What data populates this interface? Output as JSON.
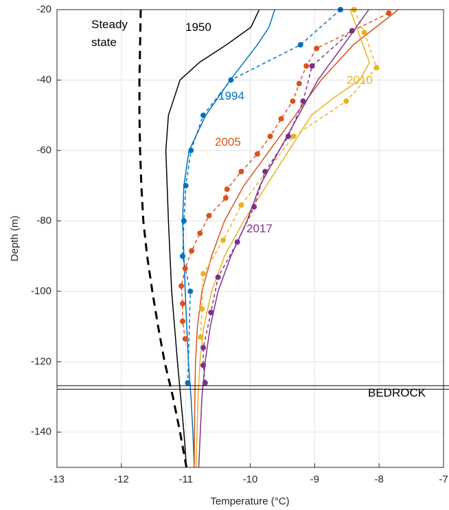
{
  "chart_data": {
    "type": "line",
    "xlabel": "Temperature (°C)",
    "ylabel": "Depth (m)",
    "xlim": [
      -13,
      -7
    ],
    "xticks": [
      -13,
      -12,
      -11,
      -10,
      -9,
      -8,
      -7
    ],
    "ylim": [
      -150,
      -20
    ],
    "yticks": [
      -140,
      -120,
      -100,
      -80,
      -60,
      -40,
      -20
    ],
    "grid": true,
    "hlines": [
      -126.8,
      -127.8
    ],
    "series": [
      {
        "color": "#000000",
        "linestyle": "dashed",
        "width": 3,
        "marker": false,
        "x": [
          -11.7,
          -11.71,
          -11.72,
          -11.72,
          -11.71,
          -11.69,
          -11.66,
          -11.6,
          -11.52,
          -11.43,
          -11.33,
          -11.2,
          -11.09,
          -10.99
        ],
        "y": [
          -20,
          -30,
          -40,
          -50,
          -60,
          -70,
          -80,
          -90,
          -100,
          -110,
          -120,
          -130,
          -140,
          -150
        ]
      },
      {
        "color": "#000000",
        "linestyle": "solid",
        "width": 1.5,
        "marker": false,
        "x": [
          -9.86,
          -9.99,
          -10.37,
          -10.79,
          -11.09,
          -11.27,
          -11.31,
          -11.27,
          -11.22,
          -11.13,
          -11.08,
          -11.03,
          -10.99
        ],
        "y": [
          -20,
          -25,
          -30,
          -35,
          -40,
          -50,
          -60,
          -80,
          -100,
          -120,
          -130,
          -140,
          -150
        ]
      },
      {
        "color": "#0072BD",
        "linestyle": "solid",
        "width": 1.5,
        "marker": false,
        "x": [
          -9.62,
          -9.71,
          -9.89,
          -10.31,
          -10.69,
          -10.95,
          -11.03,
          -11.05,
          -11.01,
          -10.96,
          -10.92,
          -10.89,
          -10.87
        ],
        "y": [
          -20,
          -25,
          -30,
          -40,
          -50,
          -60,
          -70,
          -80,
          -100,
          -120,
          -130,
          -140,
          -150
        ]
      },
      {
        "color": "#0072BD",
        "linestyle": "dashed",
        "width": 1.5,
        "marker": true,
        "x": [
          -8.6,
          -9.22,
          -10.3,
          -10.73,
          -10.92,
          -11.0,
          -11.03,
          -11.05,
          -10.93,
          -10.97
        ],
        "y": [
          -20,
          -30,
          -40,
          -50,
          -60,
          -70,
          -80,
          -90,
          -100,
          -126
        ]
      },
      {
        "color": "#D95319",
        "linestyle": "solid",
        "width": 1.5,
        "marker": false,
        "x": [
          -7.7,
          -8.4,
          -8.9,
          -9.3,
          -9.7,
          -10.1,
          -10.4,
          -10.6,
          -10.75,
          -10.82,
          -10.85,
          -10.86,
          -10.87
        ],
        "y": [
          -20,
          -30,
          -40,
          -50,
          -60,
          -70,
          -80,
          -90,
          -100,
          -110,
          -120,
          -130,
          -150
        ]
      },
      {
        "color": "#D95319",
        "linestyle": "dashed",
        "width": 1.5,
        "marker": true,
        "x": [
          -7.85,
          -8.97,
          -9.13,
          -9.24,
          -9.34,
          -9.52,
          -9.69,
          -9.89,
          -10.14,
          -10.36,
          -10.38,
          -10.64,
          -10.78,
          -10.91,
          -11.01,
          -11.07,
          -11.05,
          -11.05,
          -11.01
        ],
        "y": [
          -21,
          -31,
          -36,
          -41,
          -46,
          -51,
          -56,
          -61,
          -66,
          -71,
          -73.5,
          -78.5,
          -83.5,
          -88.5,
          -93.5,
          -98.5,
          -103.5,
          -108.5,
          -113.5
        ]
      },
      {
        "color": "#EDB120",
        "linestyle": "solid",
        "width": 1.5,
        "marker": false,
        "x": [
          -8.45,
          -8.35,
          -8.25,
          -8.15,
          -8.3,
          -8.7,
          -9.05,
          -9.4,
          -9.75,
          -10.1,
          -10.4,
          -10.6,
          -10.72,
          -10.78,
          -10.81,
          -10.84
        ],
        "y": [
          -20,
          -25,
          -30,
          -35,
          -40,
          -45,
          -50,
          -60,
          -70,
          -80,
          -90,
          -100,
          -110,
          -120,
          -130,
          -150
        ]
      },
      {
        "color": "#EDB120",
        "linestyle": "dashed",
        "width": 1.5,
        "marker": true,
        "x": [
          -8.39,
          -8.23,
          -8.04,
          -8.51,
          -9.33,
          -10.14,
          -10.42,
          -10.73,
          -10.75,
          -10.77
        ],
        "y": [
          -20,
          -26.5,
          -36.5,
          -46,
          -56,
          -75.5,
          -85.5,
          -95,
          -105,
          -113
        ]
      },
      {
        "color": "#7E2F8E",
        "linestyle": "solid",
        "width": 1.5,
        "marker": false,
        "x": [
          -8.16,
          -8.55,
          -8.95,
          -9.25,
          -9.55,
          -9.85,
          -10.05,
          -10.3,
          -10.5,
          -10.62,
          -10.7,
          -10.75,
          -10.8
        ],
        "y": [
          -20,
          -30,
          -40,
          -50,
          -60,
          -70,
          -80,
          -90,
          -100,
          -110,
          -120,
          -130,
          -150
        ]
      },
      {
        "color": "#7E2F8E",
        "linestyle": "dashed",
        "width": 1.5,
        "marker": true,
        "x": [
          -8.42,
          -9.04,
          -9.18,
          -9.41,
          -9.77,
          -9.94,
          -10.2,
          -10.5,
          -10.61,
          -10.73,
          -10.73,
          -10.7
        ],
        "y": [
          -26,
          -36,
          -46,
          -56,
          -66,
          -76,
          -86,
          -96,
          -106,
          -116,
          -121,
          -126
        ]
      }
    ],
    "annotations": [
      {
        "text": "Steady state",
        "color": "#000000"
      },
      {
        "text": "1950",
        "color": "#000000"
      },
      {
        "text": "1994",
        "color": "#0072BD"
      },
      {
        "text": "2005",
        "color": "#D95319"
      },
      {
        "text": "2010",
        "color": "#EDB120"
      },
      {
        "text": "2017",
        "color": "#7E2F8E"
      },
      {
        "text": "BEDROCK",
        "color": "#000000"
      }
    ]
  }
}
